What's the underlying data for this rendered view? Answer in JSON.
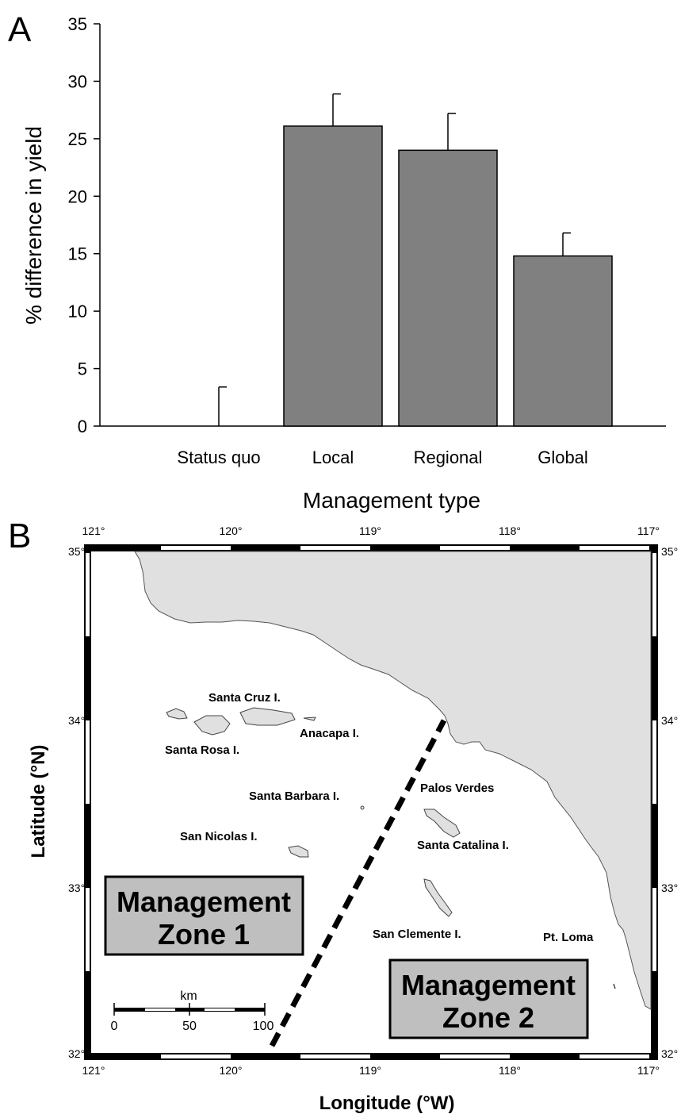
{
  "panel_a": {
    "letter": "A",
    "chart_data": {
      "type": "bar",
      "categories": [
        "Status quo",
        "Local",
        "Regional",
        "Global"
      ],
      "values": [
        0,
        26.1,
        24.0,
        14.8
      ],
      "error_upper": [
        3.4,
        28.9,
        27.2,
        16.8
      ],
      "xlabel": "Management type",
      "ylabel": "% difference in yield",
      "ylim": [
        0,
        35
      ],
      "yticks": [
        0,
        5,
        10,
        15,
        20,
        25,
        30,
        35
      ],
      "bar_color": "#808080",
      "grid": false
    }
  },
  "panel_b": {
    "letter": "B",
    "lon_ticks": [
      "121°",
      "120°",
      "119°",
      "118°",
      "117°"
    ],
    "lat_ticks_left": [
      "35°",
      "34°",
      "33°",
      "32°"
    ],
    "lat_ticks_right": [
      "35°",
      "34°",
      "33°",
      "32°"
    ],
    "xlabel": "Longitude (°W)",
    "ylabel": "Latitude (°N)",
    "places": [
      "Santa Cruz I.",
      "Anacapa I.",
      "Santa Rosa I.",
      "Santa Barbara I.",
      "San Nicolas I.",
      "Palos Verdes",
      "Santa Catalina I.",
      "San Clemente I.",
      "Pt. Loma"
    ],
    "zone1": {
      "line1": "Management",
      "line2": "Zone 1"
    },
    "zone2": {
      "line1": "Management",
      "line2": "Zone 2"
    },
    "scale": {
      "unit": "km",
      "labels": [
        "0",
        "50",
        "100"
      ]
    },
    "colors": {
      "land": "#e0e0e0",
      "zone_box": "#bfbfbf"
    }
  }
}
